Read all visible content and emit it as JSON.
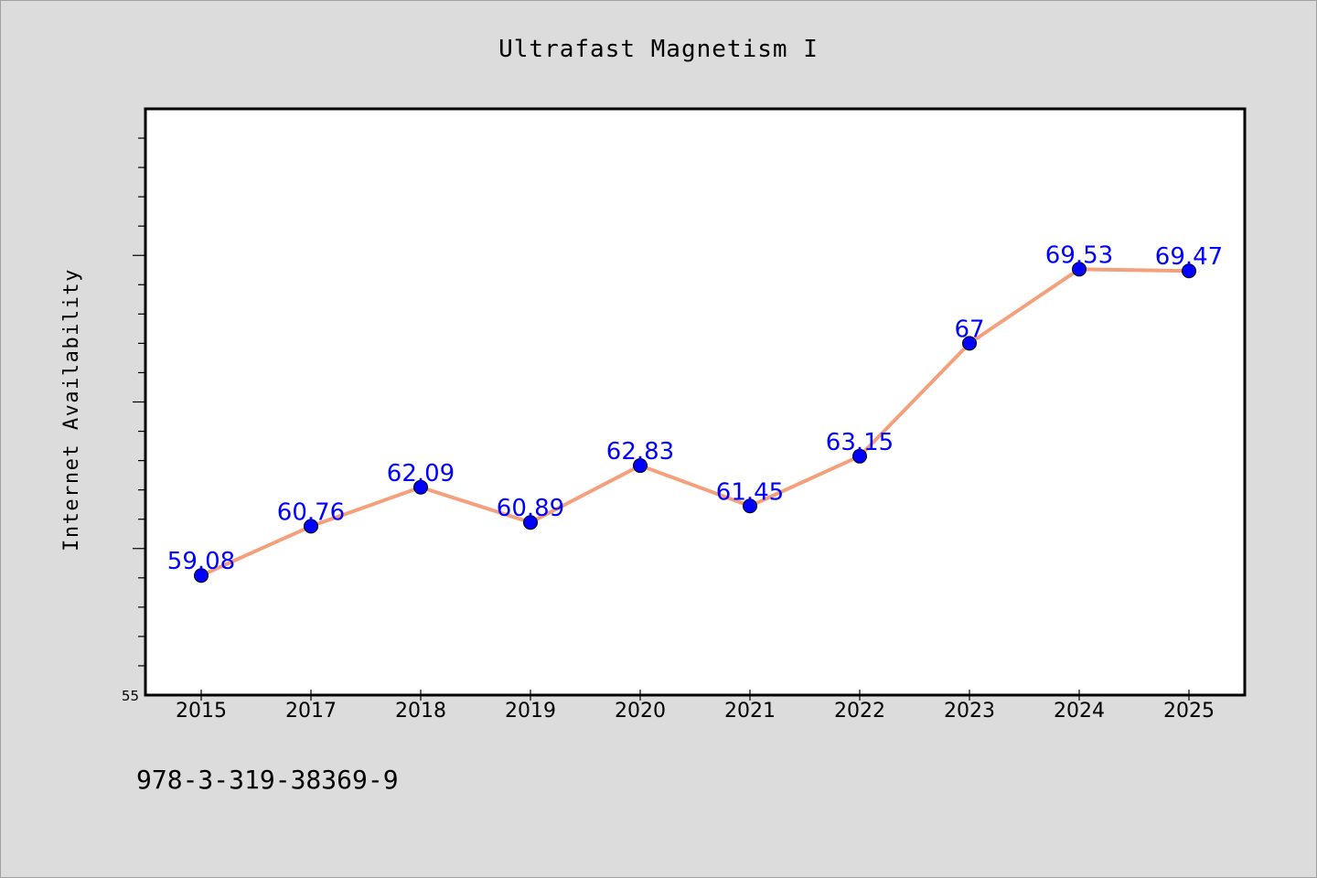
{
  "chart_data": {
    "type": "line",
    "title": "Ultrafast Magnetism I",
    "xlabel": "",
    "ylabel": "Internet Availability",
    "categories": [
      "2015",
      "2017",
      "2018",
      "2019",
      "2020",
      "2021",
      "2022",
      "2023",
      "2024",
      "2025"
    ],
    "series": [
      {
        "values": [
          59.08,
          60.76,
          62.09,
          60.89,
          62.83,
          61.45,
          63.15,
          67,
          69.53,
          69.47
        ],
        "data_labels": [
          "59.08",
          "60.76",
          "62.09",
          "60.89",
          "62.83",
          "61.45",
          "63.15",
          "67",
          "69.53",
          "69.47"
        ],
        "line_color": "#f4a07c",
        "marker_color": "#0000ff"
      }
    ],
    "ylim": [
      55,
      75
    ],
    "y_tick_labels": [
      "55"
    ],
    "grid": false,
    "legend": "none"
  },
  "footer": {
    "text": "978-3-319-38369-9"
  },
  "colors": {
    "background": "#dcdcdc",
    "plot_background": "#ffffff",
    "label_color": "#0000ff"
  }
}
